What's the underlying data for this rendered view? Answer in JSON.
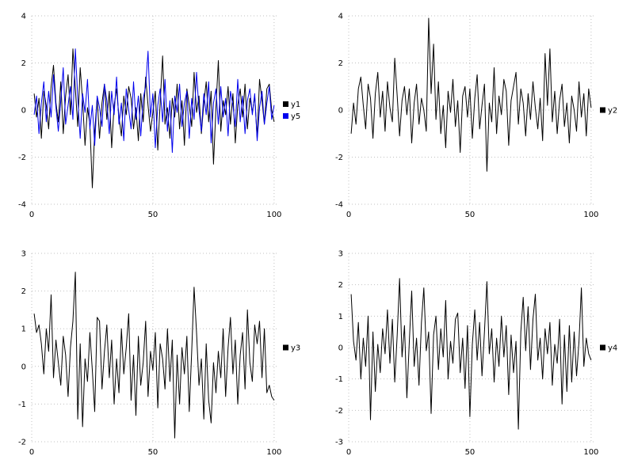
{
  "page": {
    "background": "#ffffff"
  },
  "chart_data": [
    {
      "type": "line",
      "panel": "top-left",
      "title": "",
      "xlabel": "",
      "ylabel": "",
      "xlim": [
        0,
        102
      ],
      "ylim": [
        -4,
        4
      ],
      "xticks": [
        0,
        50,
        100
      ],
      "yticks": [
        -4,
        -2,
        0,
        2,
        4
      ],
      "x_start": 1,
      "x_step": 1,
      "grid": true,
      "legend_position": "right-center",
      "series": [
        {
          "name": "y1",
          "color": "#000000",
          "values": [
            0.7,
            -0.3,
            0.5,
            -1.2,
            0.8,
            0.2,
            -0.8,
            1.0,
            1.9,
            0.3,
            -0.5,
            1.2,
            -1.0,
            0.6,
            1.5,
            -0.2,
            2.6,
            0.9,
            -0.7,
            1.8,
            0.4,
            -1.5,
            0.1,
            -0.6,
            -3.3,
            -0.9,
            0.5,
            -1.2,
            0.3,
            1.1,
            -0.4,
            0.8,
            -1.6,
            0.2,
            0.9,
            -0.3,
            -1.1,
            0.6,
            -0.2,
            1.0,
            0.5,
            -0.8,
            0.1,
            -1.3,
            0.7,
            -0.5,
            1.4,
            0.2,
            -0.9,
            -0.1,
            0.8,
            -1.7,
            0.3,
            2.3,
            -0.6,
            0.1,
            -1.2,
            0.5,
            -0.3,
            1.1,
            -0.8,
            0.4,
            -1.5,
            0.9,
            0.2,
            -0.7,
            1.6,
            -0.1,
            0.6,
            -1.0,
            0.3,
            1.2,
            -0.5,
            0.8,
            -2.3,
            0.1,
            2.1,
            -0.9,
            0.4,
            -0.2,
            1.0,
            -0.6,
            0.7,
            -1.4,
            0.2,
            0.9,
            -0.3,
            1.1,
            -0.8,
            0.5,
            -0.1,
            0.6,
            -1.2,
            1.3,
            0.4,
            -0.6,
            0.9,
            1.1,
            0.0,
            -0.5
          ]
        },
        {
          "name": "y5",
          "color": "#0000ee",
          "values": [
            -0.2,
            0.6,
            -1.0,
            0.3,
            1.2,
            -0.5,
            0.8,
            -0.3,
            1.5,
            0.1,
            -0.9,
            0.4,
            1.8,
            -0.6,
            0.2,
            1.0,
            -0.4,
            2.6,
            0.5,
            -1.2,
            0.7,
            -0.1,
            1.3,
            -0.8,
            0.2,
            -1.5,
            0.6,
            0.1,
            -0.7,
            1.1,
            0.4,
            -1.0,
            0.8,
            -0.2,
            1.4,
            -0.6,
            0.3,
            -1.3,
            0.9,
            0.0,
            -0.8,
            1.2,
            -0.4,
            0.6,
            -1.1,
            0.5,
            1.0,
            2.5,
            -0.3,
            0.7,
            -1.6,
            0.2,
            0.9,
            -0.5,
            1.3,
            -0.9,
            0.4,
            -1.8,
            0.6,
            -0.1,
            1.1,
            -0.7,
            0.3,
            0.8,
            -1.2,
            0.5,
            -0.4,
            1.6,
            0.0,
            -0.9,
            0.7,
            -0.2,
            1.2,
            -1.4,
            0.3,
            0.9,
            -0.6,
            1.0,
            -0.3,
            0.5,
            -1.1,
            0.8,
            0.2,
            -0.7,
            1.3,
            -0.5,
            0.6,
            -1.0,
            0.4,
            0.9,
            -0.2,
            0.7,
            -1.3,
            0.1,
            0.8,
            -0.6,
            0.3,
            1.0,
            -0.4,
            0.2
          ]
        }
      ]
    },
    {
      "type": "line",
      "panel": "top-right",
      "title": "",
      "xlabel": "",
      "ylabel": "",
      "xlim": [
        0,
        102
      ],
      "ylim": [
        -4,
        4
      ],
      "xticks": [
        0,
        50,
        100
      ],
      "yticks": [
        -4,
        -2,
        0,
        2,
        4
      ],
      "x_start": 1,
      "x_step": 1,
      "grid": true,
      "legend_position": "right-center",
      "series": [
        {
          "name": "y2",
          "color": "#000000",
          "values": [
            -1.0,
            0.3,
            -0.6,
            0.9,
            1.4,
            0.2,
            -0.8,
            1.1,
            0.5,
            -1.2,
            0.7,
            1.6,
            -0.3,
            0.8,
            -0.9,
            1.2,
            0.1,
            -0.5,
            2.2,
            0.6,
            -1.1,
            0.4,
            1.0,
            -0.2,
            0.9,
            -1.4,
            0.3,
            1.1,
            -0.6,
            0.5,
            0.0,
            -0.9,
            3.9,
            0.7,
            2.8,
            -0.4,
            1.2,
            -1.0,
            0.2,
            -1.6,
            0.8,
            -0.1,
            1.3,
            -0.7,
            0.4,
            -1.8,
            0.6,
            1.0,
            -0.3,
            0.9,
            -1.2,
            0.5,
            1.5,
            -0.8,
            0.2,
            1.1,
            -2.6,
            0.3,
            -0.5,
            1.8,
            -1.0,
            0.6,
            -0.2,
            1.3,
            0.8,
            -1.5,
            0.4,
            1.0,
            1.6,
            -0.6,
            0.9,
            0.3,
            -1.1,
            0.7,
            -0.4,
            1.2,
            0.1,
            -0.8,
            0.5,
            -1.3,
            2.4,
            0.2,
            2.6,
            -0.5,
            0.8,
            -1.0,
            0.4,
            1.1,
            -0.7,
            0.3,
            -1.4,
            0.6,
            0.0,
            -0.9,
            1.2,
            -0.3,
            0.7,
            -1.1,
            0.9,
            0.1
          ]
        }
      ]
    },
    {
      "type": "line",
      "panel": "bottom-left",
      "title": "",
      "xlabel": "",
      "ylabel": "",
      "xlim": [
        0,
        102
      ],
      "ylim": [
        -2,
        3
      ],
      "xticks": [
        0,
        50,
        100
      ],
      "yticks": [
        -2,
        -1,
        0,
        1,
        2,
        3
      ],
      "x_start": 1,
      "x_step": 1,
      "grid": true,
      "legend_position": "right-center",
      "series": [
        {
          "name": "y3",
          "color": "#000000",
          "values": [
            1.4,
            0.9,
            1.1,
            0.6,
            -0.2,
            1.0,
            0.4,
            1.9,
            -0.3,
            0.7,
            0.1,
            -0.5,
            0.8,
            0.3,
            -0.8,
            0.5,
            1.2,
            2.5,
            -1.4,
            0.6,
            -1.6,
            0.2,
            -0.4,
            0.9,
            -0.1,
            -1.2,
            1.3,
            1.2,
            -0.6,
            0.4,
            1.1,
            -0.3,
            0.7,
            -1.0,
            0.2,
            -0.7,
            1.0,
            -0.2,
            0.5,
            1.4,
            -0.9,
            0.3,
            -1.3,
            0.8,
            -0.5,
            0.1,
            1.2,
            -0.8,
            0.4,
            -0.1,
            0.9,
            -1.1,
            0.6,
            0.2,
            -0.6,
            1.0,
            -0.4,
            0.7,
            -1.9,
            0.3,
            -1.0,
            0.5,
            -0.2,
            0.8,
            -1.2,
            0.4,
            2.1,
            0.9,
            -0.5,
            0.2,
            -1.4,
            0.6,
            -0.9,
            -1.5,
            0.1,
            -0.7,
            0.4,
            -0.3,
            1.0,
            -0.8,
            0.5,
            1.3,
            -0.2,
            0.7,
            -1.0,
            0.3,
            0.9,
            -0.6,
            1.5,
            0.1,
            -0.4,
            1.1,
            0.6,
            1.2,
            -0.3,
            1.0,
            -0.7,
            -0.5,
            -0.8,
            -0.9
          ]
        }
      ]
    },
    {
      "type": "line",
      "panel": "bottom-right",
      "title": "",
      "xlabel": "",
      "ylabel": "",
      "xlim": [
        0,
        102
      ],
      "ylim": [
        -3,
        3
      ],
      "xticks": [
        0,
        50,
        100
      ],
      "yticks": [
        -3,
        -2,
        -1,
        0,
        1,
        2,
        3
      ],
      "x_start": 1,
      "x_step": 1,
      "grid": true,
      "legend_position": "right-center",
      "series": [
        {
          "name": "y4",
          "color": "#000000",
          "values": [
            1.7,
            0.2,
            -0.4,
            0.8,
            -1.0,
            0.3,
            -0.6,
            1.0,
            -2.3,
            0.5,
            -1.4,
            0.1,
            -0.8,
            0.6,
            -0.2,
            1.2,
            -0.5,
            0.9,
            -1.1,
            0.4,
            2.2,
            -0.3,
            0.7,
            -1.6,
            0.2,
            1.8,
            -0.6,
            0.3,
            -1.2,
            0.8,
            1.9,
            -0.1,
            0.5,
            -2.1,
            0.4,
            1.0,
            -0.7,
            0.6,
            -0.3,
            1.5,
            -1.0,
            0.2,
            -0.5,
            0.9,
            1.1,
            -0.8,
            0.3,
            -1.3,
            0.7,
            -2.2,
            0.1,
            1.2,
            -0.4,
            0.8,
            -0.9,
            0.5,
            2.1,
            -0.2,
            0.6,
            -1.1,
            0.3,
            -0.6,
            1.0,
            -0.3,
            0.7,
            -1.5,
            0.4,
            -0.8,
            0.2,
            -2.6,
            0.5,
            1.6,
            -0.1,
            1.3,
            -0.7,
            0.9,
            1.7,
            -0.4,
            0.3,
            -1.0,
            0.6,
            -0.2,
            0.8,
            -1.2,
            0.1,
            -0.5,
            0.9,
            -1.8,
            0.4,
            -1.4,
            0.7,
            -1.1,
            0.5,
            -0.9,
            0.2,
            1.9,
            -0.6,
            0.3,
            -0.2,
            -0.4
          ]
        }
      ]
    }
  ]
}
